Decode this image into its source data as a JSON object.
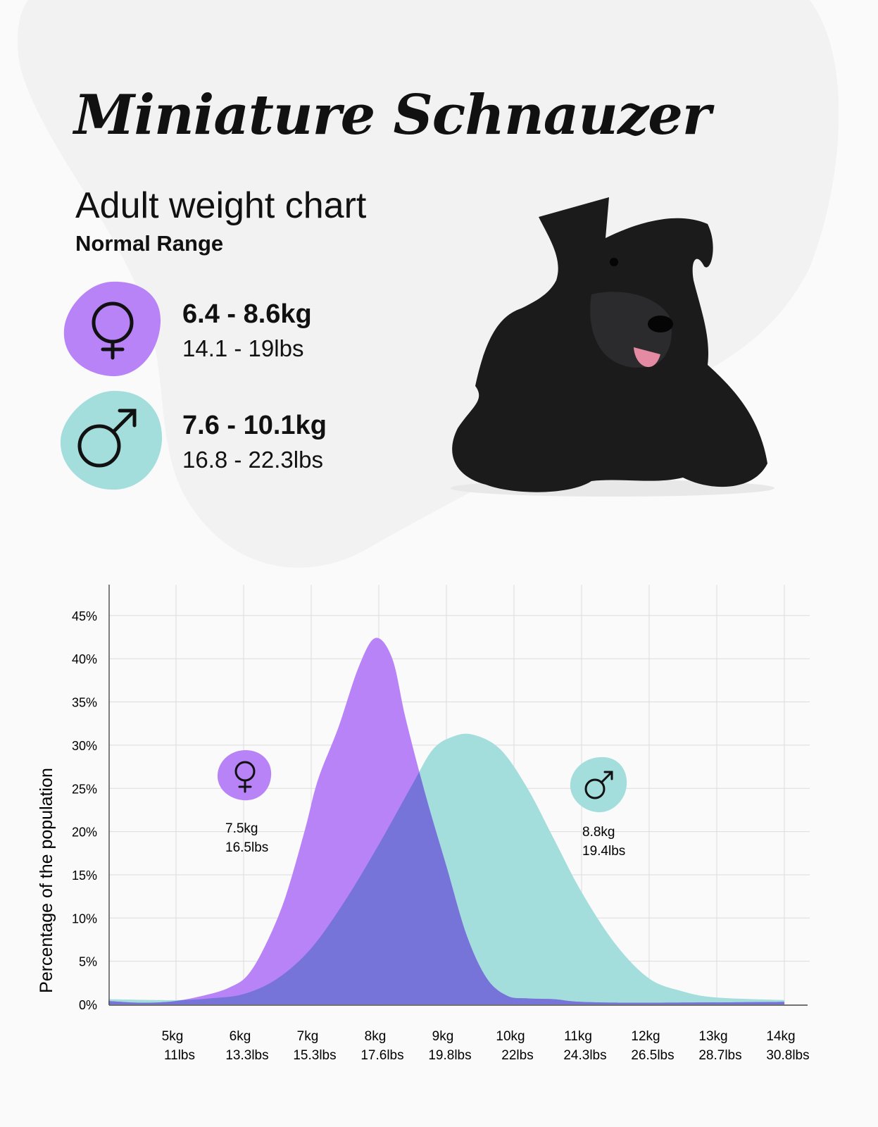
{
  "title": "Miniature Schnauzer",
  "subtitle": "Adult weight chart",
  "range_label": "Normal Range",
  "female": {
    "icon": "female-symbol-icon",
    "kg": "6.4 - 8.6kg",
    "lbs": "14.1 - 19lbs",
    "color": "#b983f8"
  },
  "male": {
    "icon": "male-symbol-icon",
    "kg": "7.6 - 10.1kg",
    "lbs": "16.8 - 22.3lbs",
    "color": "#a3dedd"
  },
  "chart_data": {
    "type": "area",
    "ylabel": "Percentage of the population",
    "xlabel": "",
    "xlim": [
      4.0,
      14.35
    ],
    "ylim": [
      0,
      48.5
    ],
    "grid": true,
    "y_ticks": [
      "0%",
      "5%",
      "10%",
      "15%",
      "20%",
      "25%",
      "30%",
      "35%",
      "40%",
      "45%"
    ],
    "y_tick_values": [
      0,
      5,
      10,
      15,
      20,
      25,
      30,
      35,
      40,
      45
    ],
    "x_ticks": [
      {
        "value": 5,
        "kg": "5kg",
        "lbs": "11lbs"
      },
      {
        "value": 6,
        "kg": "6kg",
        "lbs": "13.3lbs"
      },
      {
        "value": 7,
        "kg": "7kg",
        "lbs": "15.3lbs"
      },
      {
        "value": 8,
        "kg": "8kg",
        "lbs": "17.6lbs"
      },
      {
        "value": 9,
        "kg": "9kg",
        "lbs": "19.8lbs"
      },
      {
        "value": 10,
        "kg": "10kg",
        "lbs": "22lbs"
      },
      {
        "value": 11,
        "kg": "11kg",
        "lbs": "24.3lbs"
      },
      {
        "value": 12,
        "kg": "12kg",
        "lbs": "26.5lbs"
      },
      {
        "value": 13,
        "kg": "13kg",
        "lbs": "28.7lbs"
      },
      {
        "value": 14,
        "kg": "14kg",
        "lbs": "30.8lbs"
      }
    ],
    "overlap_color": "#7674d8",
    "series": [
      {
        "name": "Female",
        "color": "#b983f8",
        "points": [
          [
            4.0,
            0.4
          ],
          [
            4.5,
            0.2
          ],
          [
            5,
            0.4
          ],
          [
            5.5,
            1.2
          ],
          [
            5.8,
            2
          ],
          [
            6.05,
            3.3
          ],
          [
            6.3,
            6.5
          ],
          [
            6.6,
            12
          ],
          [
            6.9,
            20
          ],
          [
            7.1,
            26
          ],
          [
            7.4,
            32
          ],
          [
            7.7,
            39
          ],
          [
            7.95,
            42.4
          ],
          [
            8.2,
            40
          ],
          [
            8.4,
            33
          ],
          [
            8.7,
            24
          ],
          [
            9.0,
            16
          ],
          [
            9.3,
            8
          ],
          [
            9.6,
            3
          ],
          [
            9.9,
            1
          ],
          [
            10.2,
            0.7
          ],
          [
            10.6,
            0.6
          ],
          [
            11,
            0.3
          ],
          [
            12,
            0.2
          ],
          [
            14,
            0.3
          ]
        ],
        "annotation": {
          "x": 7.5,
          "y": 26,
          "kg": "7.5kg",
          "lbs": "16.5lbs"
        }
      },
      {
        "name": "Male",
        "color": "#a3dedd",
        "points": [
          [
            4.0,
            0.6
          ],
          [
            5,
            0.5
          ],
          [
            5.5,
            0.7
          ],
          [
            6,
            1.2
          ],
          [
            6.5,
            3
          ],
          [
            7,
            6.5
          ],
          [
            7.5,
            12
          ],
          [
            8,
            18.5
          ],
          [
            8.5,
            25.5
          ],
          [
            8.8,
            29.5
          ],
          [
            9.1,
            31
          ],
          [
            9.4,
            31.2
          ],
          [
            9.8,
            29.5
          ],
          [
            10.2,
            25
          ],
          [
            10.6,
            19
          ],
          [
            11,
            13
          ],
          [
            11.5,
            7
          ],
          [
            12,
            3
          ],
          [
            12.5,
            1.5
          ],
          [
            13,
            0.8
          ],
          [
            14,
            0.5
          ]
        ],
        "annotation": {
          "x": 8.8,
          "y": 25,
          "kg": "8.8kg",
          "lbs": "19.4lbs"
        }
      }
    ]
  }
}
